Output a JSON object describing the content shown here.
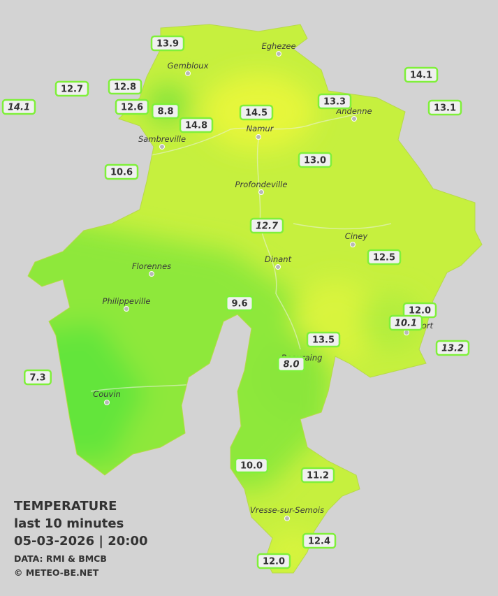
{
  "legend": {
    "title": "TEMPERATURE",
    "subtitle": "last 10 minutes",
    "datetime": "05-03-2026  |  20:00",
    "source": "DATA: RMI & BMCB",
    "credit": "© METEO-BE.NET"
  },
  "towns": [
    "Eghezee",
    "Gembloux",
    "Andenne",
    "Namur",
    "Sambreville",
    "Profondeville",
    "Ciney",
    "Dinant",
    "Florennes",
    "Philippeville",
    "Rochefort",
    "Beauraing",
    "Couvin",
    "Vresse-sur-Semois"
  ],
  "stations": [
    "13.9",
    "12.7",
    "12.8",
    "12.6",
    "8.8",
    "14.8",
    "14.5",
    "13.3",
    "14.1",
    "13.1",
    "14.1",
    "10.6",
    "13.0",
    "12.7",
    "12.5",
    "9.6",
    "12.0",
    "10.1",
    "13.5",
    "8.0",
    "13.2",
    "7.3",
    "10.0",
    "11.2",
    "12.4",
    "12.0"
  ]
}
